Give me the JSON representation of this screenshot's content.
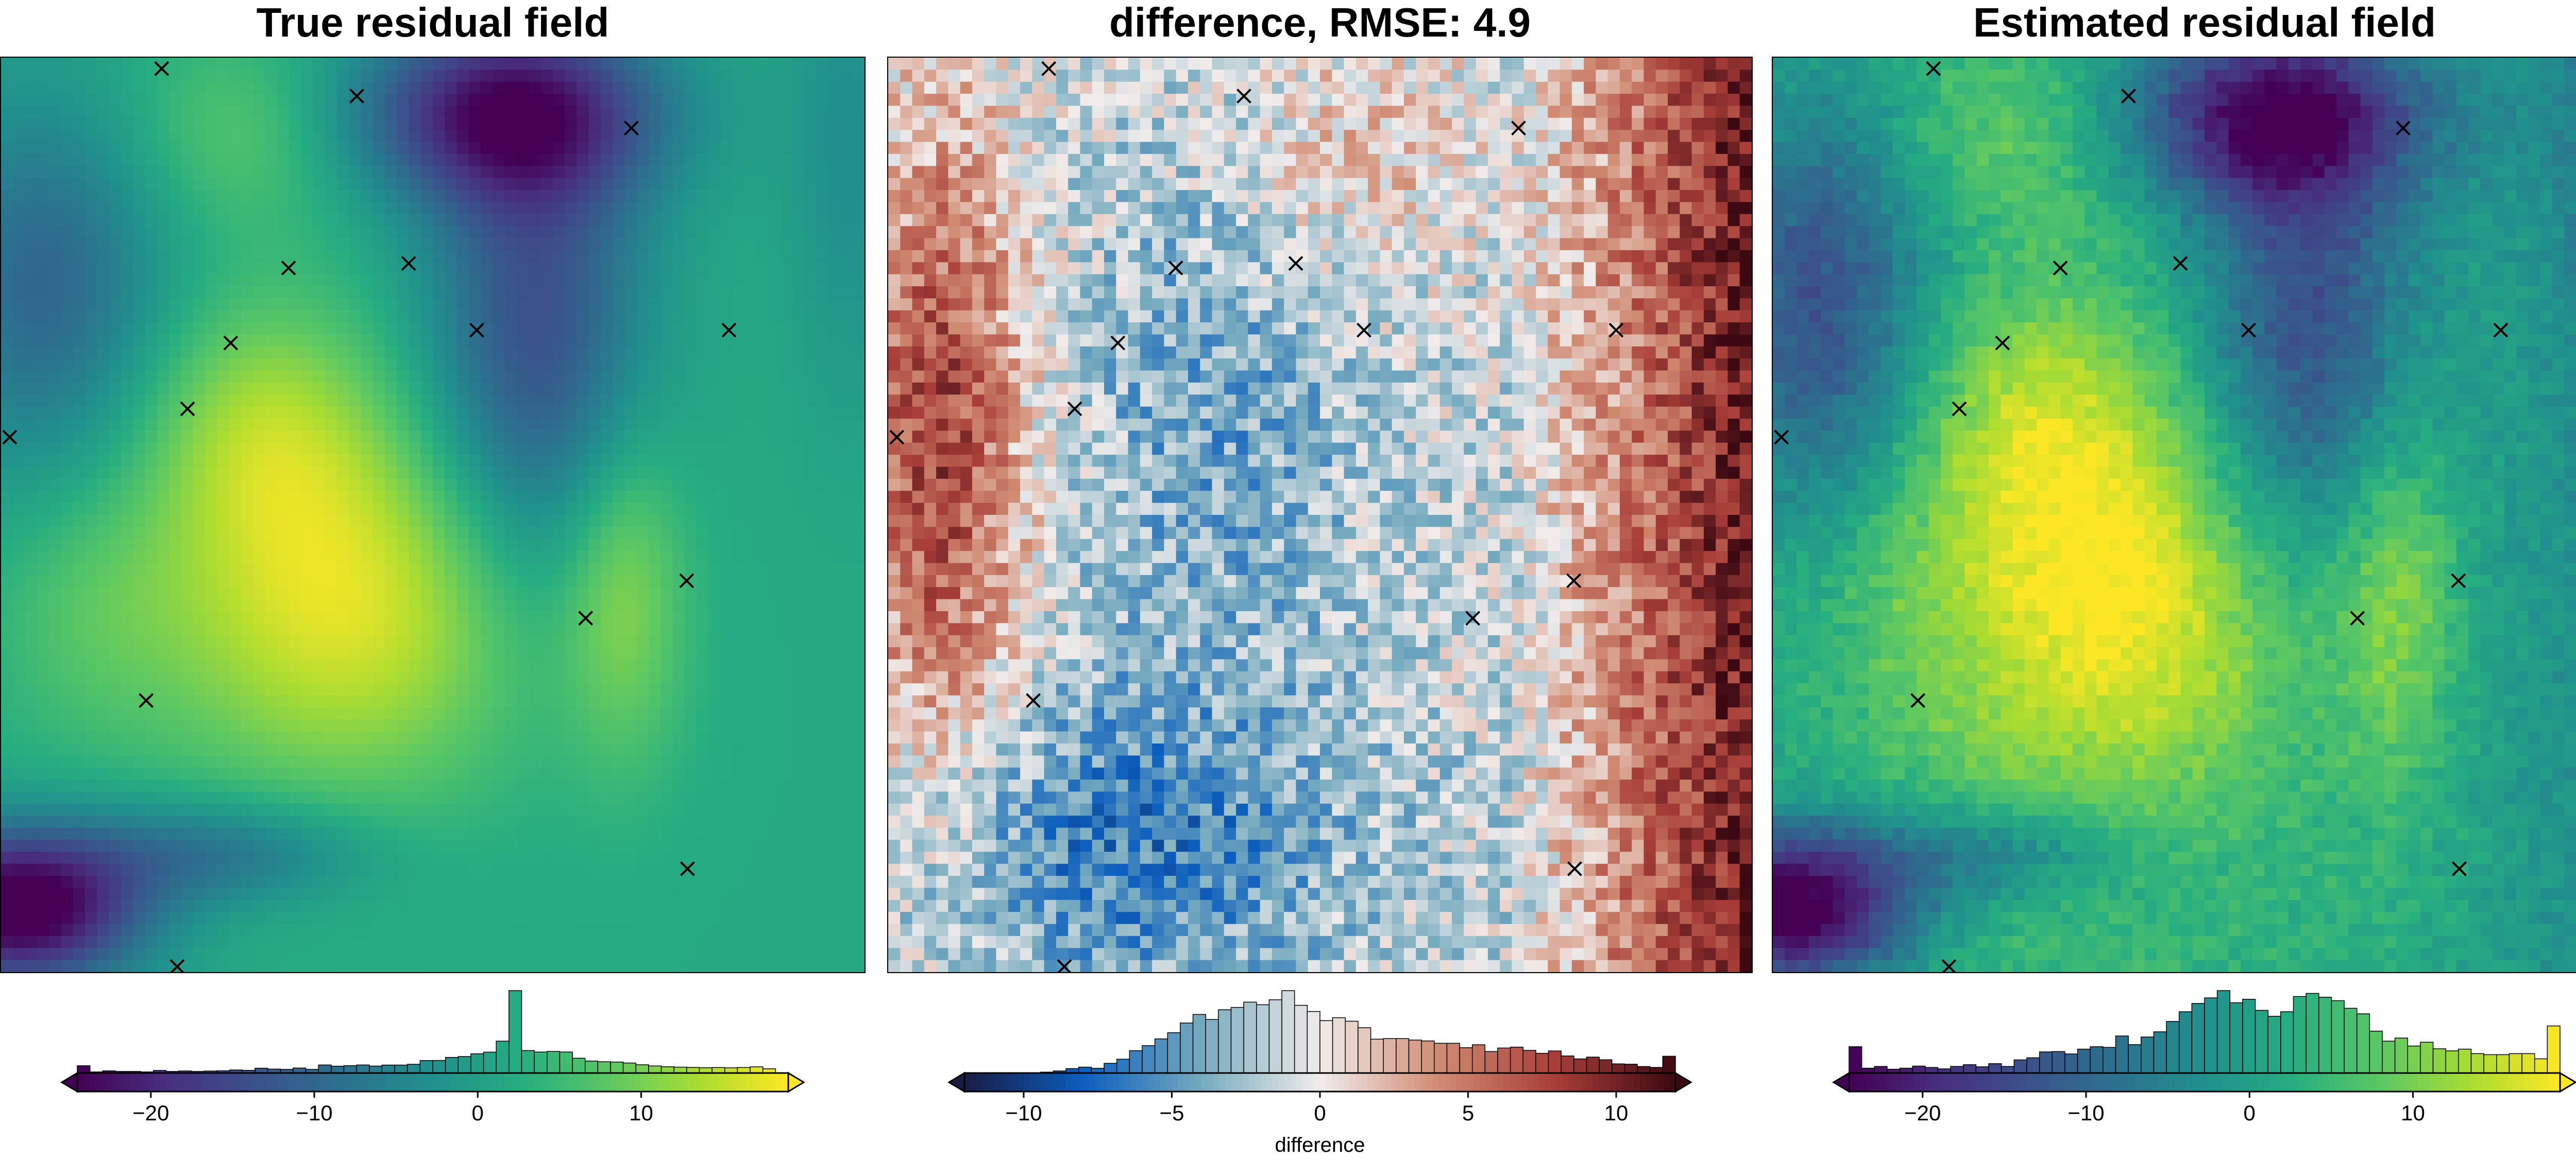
{
  "chart_data": [
    {
      "type": "heatmap",
      "title": "True residual field",
      "colormap": "viridis",
      "colorbar": {
        "ticks": [
          -20,
          -10,
          0,
          10
        ],
        "tick_labels": [
          "−20",
          "−10",
          "0",
          "10"
        ],
        "range": [
          -24.5,
          19
        ],
        "label": "",
        "histogram": true,
        "extend": "both"
      }
    },
    {
      "type": "heatmap",
      "title": "difference, RMSE: 4.9",
      "colormap": "balance",
      "colorbar": {
        "ticks": [
          -10,
          -5,
          0,
          5,
          10
        ],
        "tick_labels": [
          "−10",
          "−5",
          "0",
          "5",
          "10"
        ],
        "range": [
          -12,
          12
        ],
        "label": "difference",
        "histogram": true,
        "extend": "both"
      }
    },
    {
      "type": "heatmap",
      "title": "Estimated residual field",
      "colormap": "viridis",
      "colorbar": {
        "ticks": [
          -20,
          -10,
          0,
          10
        ],
        "tick_labels": [
          "−20",
          "−10",
          "0",
          "10"
        ],
        "range": [
          -24.5,
          19
        ],
        "label": "",
        "histogram": true,
        "extend": "both"
      }
    }
  ],
  "constraint_points": [
    [
      0.186,
      0.012
    ],
    [
      0.412,
      0.042
    ],
    [
      0.73,
      0.077
    ],
    [
      0.333,
      0.23
    ],
    [
      0.472,
      0.225
    ],
    [
      0.266,
      0.312
    ],
    [
      0.551,
      0.298
    ],
    [
      0.843,
      0.298
    ],
    [
      0.216,
      0.384
    ],
    [
      0.01,
      0.415
    ],
    [
      0.794,
      0.572
    ],
    [
      0.677,
      0.613
    ],
    [
      0.168,
      0.703
    ],
    [
      0.795,
      0.887
    ],
    [
      0.204,
      0.994
    ]
  ],
  "colors": {
    "marker": "#000000",
    "viridis": [
      "#440154",
      "#472f7d",
      "#3b518b",
      "#2c718e",
      "#21908d",
      "#27ad81",
      "#5cc863",
      "#aadc32",
      "#fde725"
    ],
    "balance": [
      "#181c43",
      "#0c5ebe",
      "#75aabe",
      "#f1eceb",
      "#d08b73",
      "#a73d38",
      "#3c0912"
    ]
  }
}
